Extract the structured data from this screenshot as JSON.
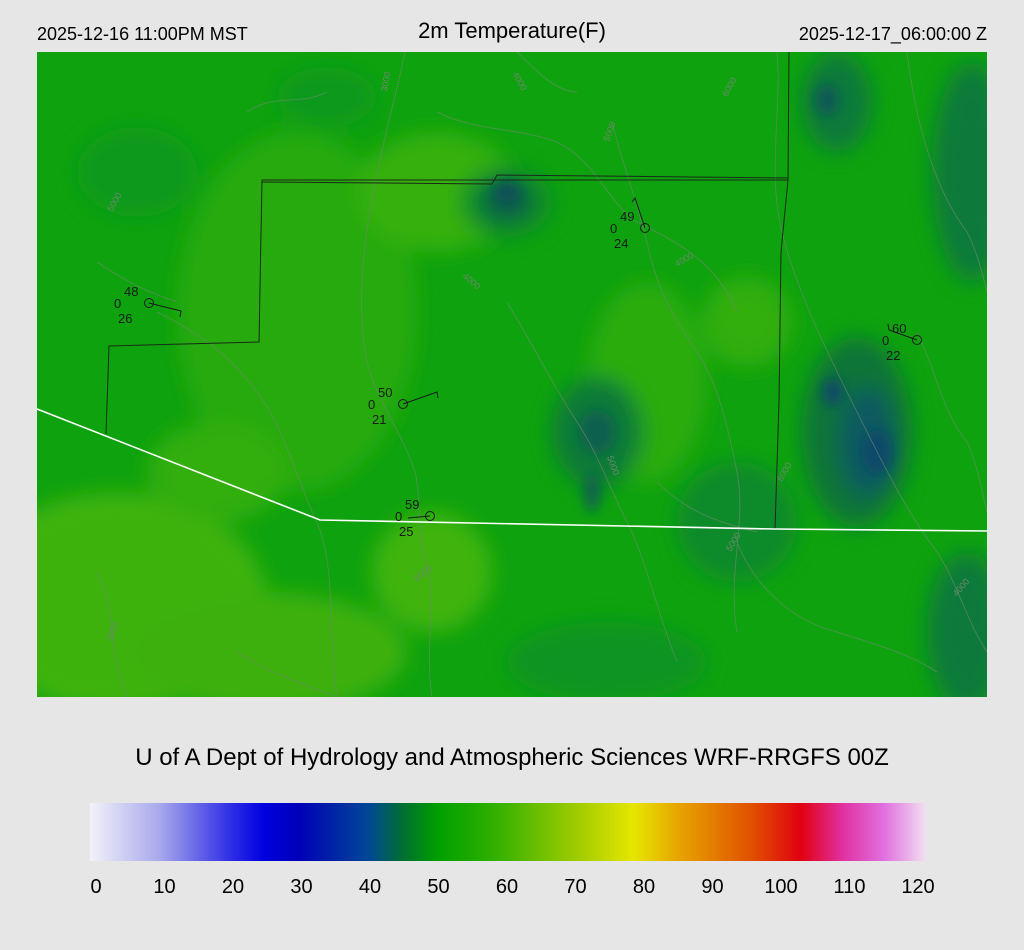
{
  "header": {
    "left": "2025-12-16 11:00PM MST",
    "title": "2m Temperature(F)",
    "right": "2025-12-17_06:00:00 Z"
  },
  "credit": "U of A Dept of Hydrology and Atmospheric Sciences WRF-RRGFS 00Z",
  "colorbar": {
    "ticks": [
      "0",
      "10",
      "20",
      "30",
      "40",
      "50",
      "60",
      "70",
      "80",
      "90",
      "100",
      "110",
      "120"
    ],
    "stops": [
      {
        "value": 0,
        "color": "#f2f2fa"
      },
      {
        "value": 10,
        "color": "#a8a8ec"
      },
      {
        "value": 20,
        "color": "#3030e6"
      },
      {
        "value": 25,
        "color": "#0000e0"
      },
      {
        "value": 30,
        "color": "#0000b8"
      },
      {
        "value": 40,
        "color": "#004896"
      },
      {
        "value": 45,
        "color": "#007030"
      },
      {
        "value": 50,
        "color": "#00a000"
      },
      {
        "value": 58,
        "color": "#30b000"
      },
      {
        "value": 70,
        "color": "#a0cc00"
      },
      {
        "value": 78,
        "color": "#e6e600"
      },
      {
        "value": 85,
        "color": "#e6a000"
      },
      {
        "value": 95,
        "color": "#e05000"
      },
      {
        "value": 102,
        "color": "#e00010"
      },
      {
        "value": 108,
        "color": "#e030a0"
      },
      {
        "value": 114,
        "color": "#e070e0"
      },
      {
        "value": 120,
        "color": "#f0e0f0"
      }
    ]
  },
  "stations": [
    {
      "temp": "48",
      "cloud": "0",
      "dew": "26"
    },
    {
      "temp": "49",
      "cloud": "0",
      "dew": "24"
    },
    {
      "temp": "50",
      "cloud": "0",
      "dew": "21"
    },
    {
      "temp": "59",
      "cloud": "0",
      "dew": "25"
    },
    {
      "temp": "60",
      "cloud": "0",
      "dew": "22"
    }
  ],
  "contour_labels": [
    "5000",
    "4000",
    "3000",
    "6000",
    "5000",
    "4000",
    "4000",
    "5000",
    "6000",
    "5000",
    "6000",
    "4000",
    "3000"
  ]
}
